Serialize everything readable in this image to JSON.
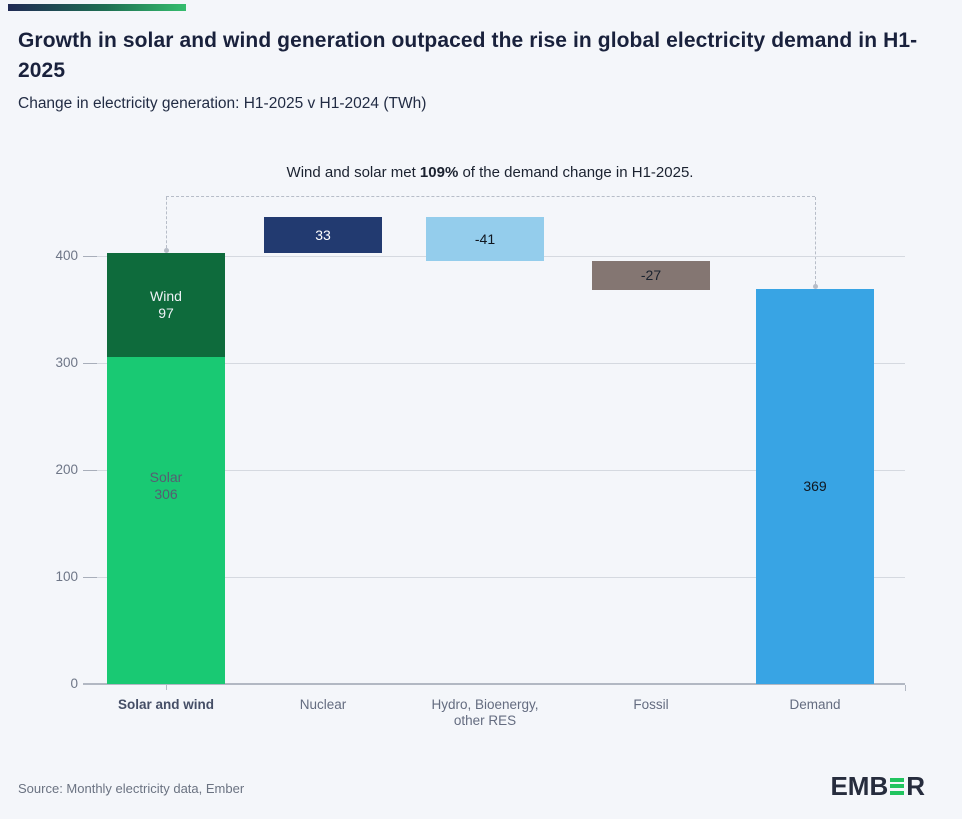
{
  "page": {
    "background": "#f4f6fa",
    "accent_gradient_from": "#202a54",
    "accent_gradient_to": "#35bd6e"
  },
  "header": {
    "title": "Growth in solar and wind generation outpaced the rise in global electricity demand in H1-2025",
    "subtitle": "Change in electricity generation: H1-2025 v H1-2024 (TWh)"
  },
  "annotation": {
    "prefix": "Wind and solar met ",
    "highlight": "109%",
    "suffix": " of the demand change in H1-2025."
  },
  "chart_data": {
    "type": "bar",
    "subtype": "waterfall_stacked",
    "unit": "TWh",
    "title": "Change in electricity generation: H1-2025 v H1-2024 (TWh)",
    "categories": [
      "Solar and wind",
      "Nuclear",
      "Hydro, Bioenergy,\nother RES",
      "Fossil",
      "Demand"
    ],
    "yticks": [
      0,
      100,
      200,
      300,
      400
    ],
    "ylim": [
      0,
      440
    ],
    "grid": true,
    "bars": [
      {
        "category": "Solar and wind",
        "emphasis": true,
        "segments": [
          {
            "name": "Solar",
            "value": 306,
            "start": 0,
            "end": 306,
            "color": "#19c973",
            "label_color": "#565d72",
            "label_lines": [
              "Solar",
              "306"
            ]
          },
          {
            "name": "Wind",
            "value": 97,
            "start": 306,
            "end": 403,
            "color": "#0e6b3c",
            "label_color": "#eef2f6",
            "label_lines": [
              "Wind",
              "97"
            ]
          }
        ]
      },
      {
        "category": "Nuclear",
        "emphasis": false,
        "segments": [
          {
            "name": "Nuclear",
            "value": 33,
            "start": 403,
            "end": 436,
            "color": "#223a70",
            "label_color": "#ffffff",
            "label_lines": [
              "33"
            ]
          }
        ]
      },
      {
        "category": "Hydro, Bioenergy,\nother RES",
        "emphasis": false,
        "segments": [
          {
            "name": "Hydro, Bioenergy, other RES",
            "value": -41,
            "start": 395,
            "end": 436,
            "color": "#94cdec",
            "label_color": "#10161f",
            "label_lines": [
              "-41"
            ]
          }
        ]
      },
      {
        "category": "Fossil",
        "emphasis": false,
        "segments": [
          {
            "name": "Fossil",
            "value": -27,
            "start": 368,
            "end": 395,
            "color": "#847672",
            "label_color": "#1a222e",
            "label_lines": [
              "-27"
            ]
          }
        ]
      },
      {
        "category": "Demand",
        "emphasis": false,
        "segments": [
          {
            "name": "Demand",
            "value": 369,
            "start": 0,
            "end": 369,
            "color": "#38a4e4",
            "label_color": "#10161f",
            "label_lines": [
              "369"
            ]
          }
        ]
      }
    ]
  },
  "footer": {
    "source": "Source: Monthly electricity data, Ember",
    "logo": {
      "prefix": "EMB",
      "suffix": "R",
      "bars_color": "#21c45f",
      "text_color": "#262c3d"
    }
  }
}
